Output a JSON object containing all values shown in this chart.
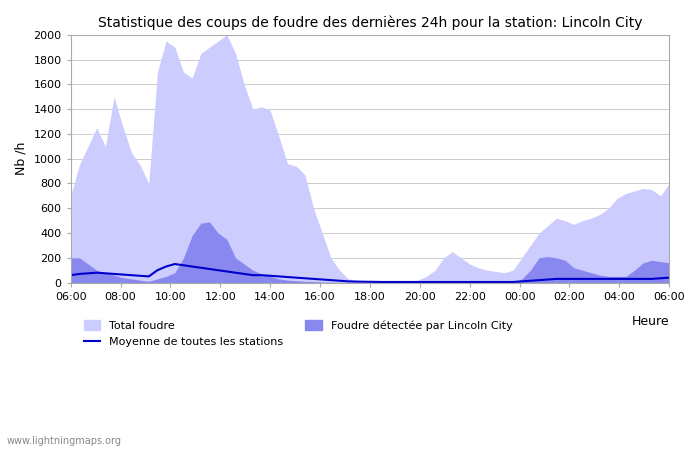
{
  "title": "Statistique des coups de foudre des dernières 24h pour la station: Lincoln City",
  "xlabel": "Heure",
  "ylabel": "Nb /h",
  "ylim": [
    0,
    2000
  ],
  "yticks": [
    0,
    200,
    400,
    600,
    800,
    1000,
    1200,
    1400,
    1600,
    1800,
    2000
  ],
  "xtick_labels": [
    "06:00",
    "08:00",
    "10:00",
    "12:00",
    "14:00",
    "16:00",
    "18:00",
    "20:00",
    "22:00",
    "00:00",
    "02:00",
    "04:00",
    "06:00"
  ],
  "watermark": "www.lightningmaps.org",
  "color_total": "#ccccff",
  "color_local": "#8888ee",
  "color_mean": "#0000cc",
  "total_foudre": [
    700,
    950,
    1100,
    1250,
    1100,
    1500,
    1260,
    1050,
    950,
    800,
    1700,
    1950,
    1900,
    1700,
    1650,
    1850,
    1900,
    1950,
    2000,
    1850,
    1600,
    1400,
    1420,
    1390,
    1180,
    960,
    940,
    870,
    600,
    400,
    200,
    100,
    30,
    20,
    10,
    10,
    10,
    5,
    5,
    10,
    20,
    50,
    100,
    200,
    250,
    200,
    150,
    120,
    100,
    90,
    80,
    100,
    200,
    300,
    400,
    460,
    520,
    500,
    470,
    500,
    520,
    550,
    600,
    680,
    720,
    740,
    760,
    750,
    700,
    800
  ],
  "local_foudre": [
    200,
    200,
    150,
    100,
    80,
    60,
    40,
    30,
    20,
    10,
    30,
    50,
    80,
    200,
    380,
    480,
    490,
    400,
    350,
    200,
    150,
    100,
    70,
    50,
    30,
    20,
    15,
    10,
    8,
    5,
    3,
    2,
    1,
    1,
    0,
    0,
    0,
    0,
    0,
    0,
    0,
    0,
    0,
    0,
    0,
    0,
    0,
    0,
    0,
    0,
    0,
    0,
    30,
    100,
    200,
    210,
    200,
    180,
    120,
    100,
    80,
    60,
    50,
    50,
    50,
    100,
    160,
    180,
    170,
    160
  ],
  "mean_line": [
    60,
    70,
    75,
    80,
    75,
    70,
    65,
    60,
    55,
    50,
    100,
    130,
    150,
    140,
    130,
    120,
    110,
    100,
    90,
    80,
    70,
    60,
    60,
    55,
    50,
    45,
    40,
    35,
    30,
    25,
    20,
    15,
    10,
    8,
    7,
    6,
    5,
    5,
    5,
    5,
    5,
    5,
    5,
    5,
    5,
    5,
    5,
    5,
    5,
    5,
    5,
    5,
    10,
    15,
    20,
    25,
    30,
    30,
    30,
    30,
    30,
    30,
    30,
    30,
    30,
    30,
    30,
    30,
    35,
    40
  ]
}
